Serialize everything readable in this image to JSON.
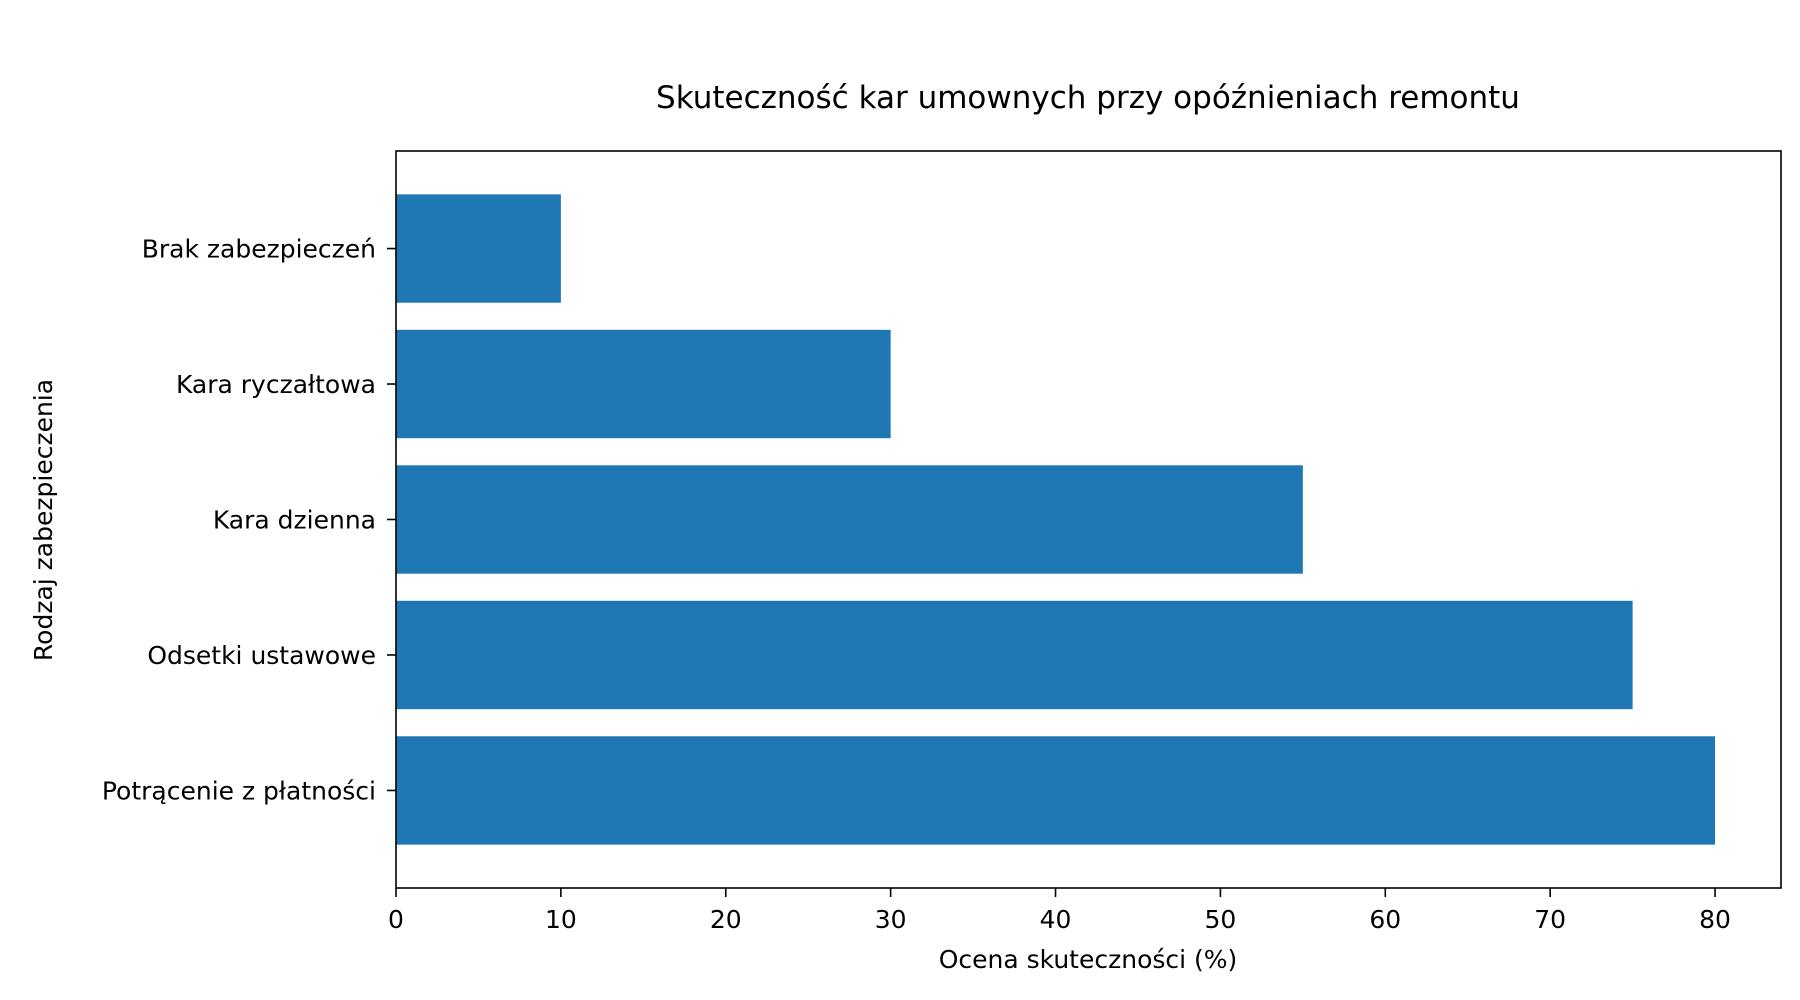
{
  "chart_data": {
    "type": "bar",
    "orientation": "horizontal",
    "title": "Skuteczność kar umownych przy opóźnieniach remontu",
    "xlabel": "Ocena skuteczności (%)",
    "ylabel": "Rodzaj zabezpieczenia",
    "categories": [
      "Brak zabezpieczeń",
      "Kara ryczałtowa",
      "Kara dzienna",
      "Odsetki ustawowe",
      "Potrącenie z płatności"
    ],
    "values": [
      10,
      30,
      55,
      75,
      80
    ],
    "xlim": [
      0,
      84
    ],
    "xticks": [
      0,
      10,
      20,
      30,
      40,
      50,
      60,
      70,
      80
    ],
    "grid": false,
    "legend": "none",
    "bar_color": "#1f77b4"
  }
}
